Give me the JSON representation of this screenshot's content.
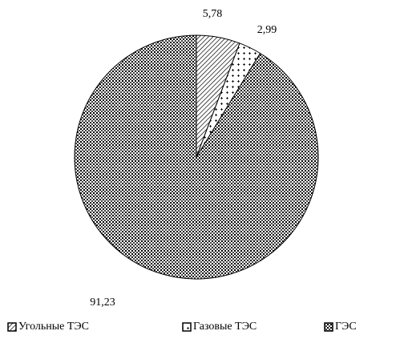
{
  "chart_data": {
    "type": "pie",
    "categories": [
      "Угольные ТЭС",
      "Газовые ТЭС",
      "ГЭС"
    ],
    "values": [
      5.78,
      2.99,
      91.23
    ],
    "value_labels": [
      "5,78",
      "2,99",
      "91,23"
    ]
  }
}
